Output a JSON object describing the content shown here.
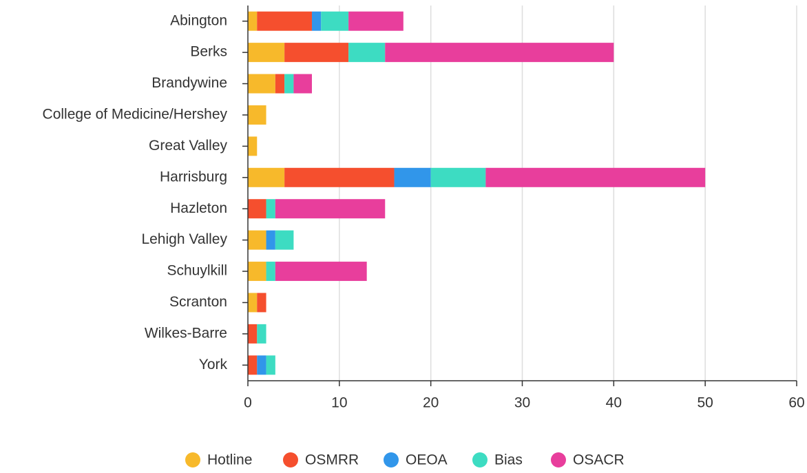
{
  "chart_data": {
    "type": "stacked_bar_horizontal",
    "categories": [
      "Abington",
      "Berks",
      "Brandywine",
      "College of Medicine/Hershey",
      "Great Valley",
      "Harrisburg",
      "Hazleton",
      "Lehigh Valley",
      "Schuylkill",
      "Scranton",
      "Wilkes-Barre",
      "York"
    ],
    "series": [
      {
        "name": "Hotline",
        "color": "#f7b92b",
        "values": [
          1,
          4,
          3,
          2,
          1,
          4,
          0,
          2,
          2,
          1,
          0,
          0
        ]
      },
      {
        "name": "OSMRR",
        "color": "#f54f2e",
        "values": [
          6,
          7,
          1,
          0,
          0,
          12,
          2,
          0,
          0,
          1,
          1,
          1
        ]
      },
      {
        "name": "OEOA",
        "color": "#3196ea",
        "values": [
          1,
          0,
          0,
          0,
          0,
          4,
          0,
          1,
          0,
          0,
          0,
          1
        ]
      },
      {
        "name": "Bias",
        "color": "#3ddcc2",
        "values": [
          3,
          4,
          1,
          0,
          0,
          6,
          1,
          2,
          1,
          0,
          1,
          1
        ]
      },
      {
        "name": "OSACR",
        "color": "#e83e9c",
        "values": [
          6,
          25,
          2,
          0,
          0,
          24,
          12,
          0,
          10,
          0,
          0,
          0
        ]
      }
    ],
    "xlim": [
      0,
      60
    ],
    "xticks": [
      0,
      10,
      20,
      30,
      40,
      50,
      60
    ],
    "grid": true,
    "legend": "bottom"
  }
}
